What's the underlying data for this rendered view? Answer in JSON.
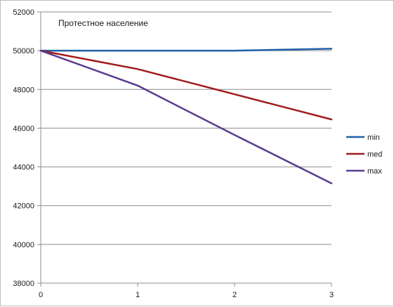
{
  "chart_data": {
    "type": "line",
    "title": "Протестное население",
    "x": [
      0,
      1,
      2,
      3
    ],
    "xlim": [
      0,
      3
    ],
    "ylim": [
      38000,
      52000
    ],
    "yticks": [
      38000,
      40000,
      42000,
      44000,
      46000,
      48000,
      50000,
      52000
    ],
    "xticks": [
      0,
      1,
      2,
      3
    ],
    "grid": true,
    "legend_position": "right",
    "series": [
      {
        "name": "min",
        "color": "#1f5fa8",
        "values": [
          50000,
          50000,
          50000,
          50100
        ]
      },
      {
        "name": "med",
        "color": "#a01c1c",
        "values": [
          50000,
          49050,
          47750,
          46450
        ]
      },
      {
        "name": "max",
        "color": "#5b3b8f",
        "values": [
          50000,
          48200,
          45650,
          43150
        ]
      }
    ]
  }
}
